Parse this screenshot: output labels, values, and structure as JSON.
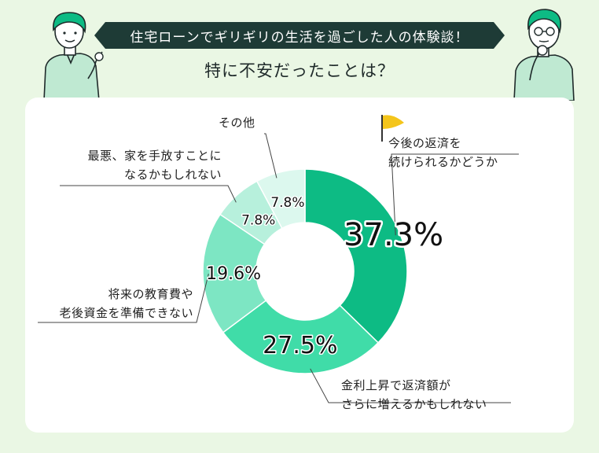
{
  "header": {
    "banner_title": "住宅ローンでギリギリの生活を過ごした人の体験談！",
    "question": "特に不安だったことは？"
  },
  "colors": {
    "background": "#eaf7e4",
    "banner": "#1e3b36",
    "card": "#ffffff",
    "leader": "#444444",
    "flag": "#f4c51b"
  },
  "icons": [
    "person-pointing-icon",
    "person-thinking-icon",
    "flag-icon"
  ],
  "chart_data": {
    "type": "pie",
    "donut": true,
    "title": "",
    "slices": [
      {
        "label_line1": "今後の返済を",
        "label_line2": "続けられるかどうか",
        "value": 37.3,
        "value_label": "37.3%",
        "color": "#0dbb84",
        "text_color": "#111111"
      },
      {
        "label_line1": "金利上昇で返済額が",
        "label_line2": "さらに増えるかもしれない",
        "value": 27.5,
        "value_label": "27.5%",
        "color": "#40dca8",
        "text_color": "#111111"
      },
      {
        "label_line1": "将来の教育費や",
        "label_line2": "老後資金を準備できない",
        "value": 19.6,
        "value_label": "19.6%",
        "color": "#7de6c3",
        "text_color": "#111111"
      },
      {
        "label_line1": "最悪、家を手放すことに",
        "label_line2": "なるかもしれない",
        "value": 7.8,
        "value_label": "7.8%",
        "color": "#b7f0dc",
        "text_color": "#111111"
      },
      {
        "label_line1": "その他",
        "label_line2": "",
        "value": 7.8,
        "value_label": "7.8%",
        "color": "#dcf8ee",
        "text_color": "#111111"
      }
    ]
  }
}
